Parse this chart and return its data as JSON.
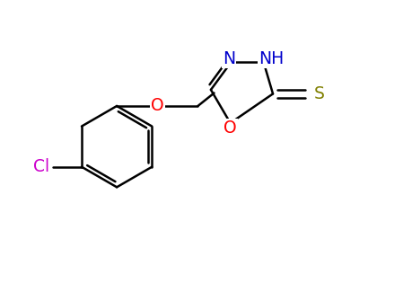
{
  "background_color": "#ffffff",
  "bond_color": "#000000",
  "lw": 1.8,
  "figsize": [
    4.59,
    3.15
  ],
  "dpi": 100,
  "xlim": [
    0,
    10
  ],
  "ylim": [
    0,
    6.85
  ],
  "colors": {
    "O": "#ff0000",
    "N": "#0000cc",
    "S": "#808000",
    "Cl": "#cc00cc",
    "C": "#000000"
  }
}
